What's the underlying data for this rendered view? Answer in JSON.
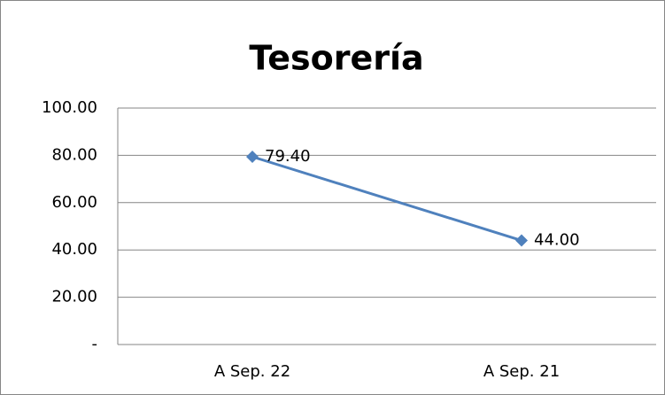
{
  "chart_data": {
    "type": "line",
    "title": "Tesorería",
    "categories": [
      "A Sep. 22",
      "A Sep. 21"
    ],
    "series": [
      {
        "name": "Tesorería",
        "color": "#4f81bd",
        "values": [
          79.4,
          44
        ],
        "value_labels": [
          "79.40",
          "44.00"
        ]
      }
    ],
    "ylim": [
      0,
      100
    ],
    "yticks": [
      {
        "value": 0,
        "label": "-"
      },
      {
        "value": 20,
        "label": "20.00"
      },
      {
        "value": 40,
        "label": "40.00"
      },
      {
        "value": 60,
        "label": "60.00"
      },
      {
        "value": 80,
        "label": "80.00"
      },
      {
        "value": 100,
        "label": "100.00"
      }
    ],
    "grid": true
  }
}
